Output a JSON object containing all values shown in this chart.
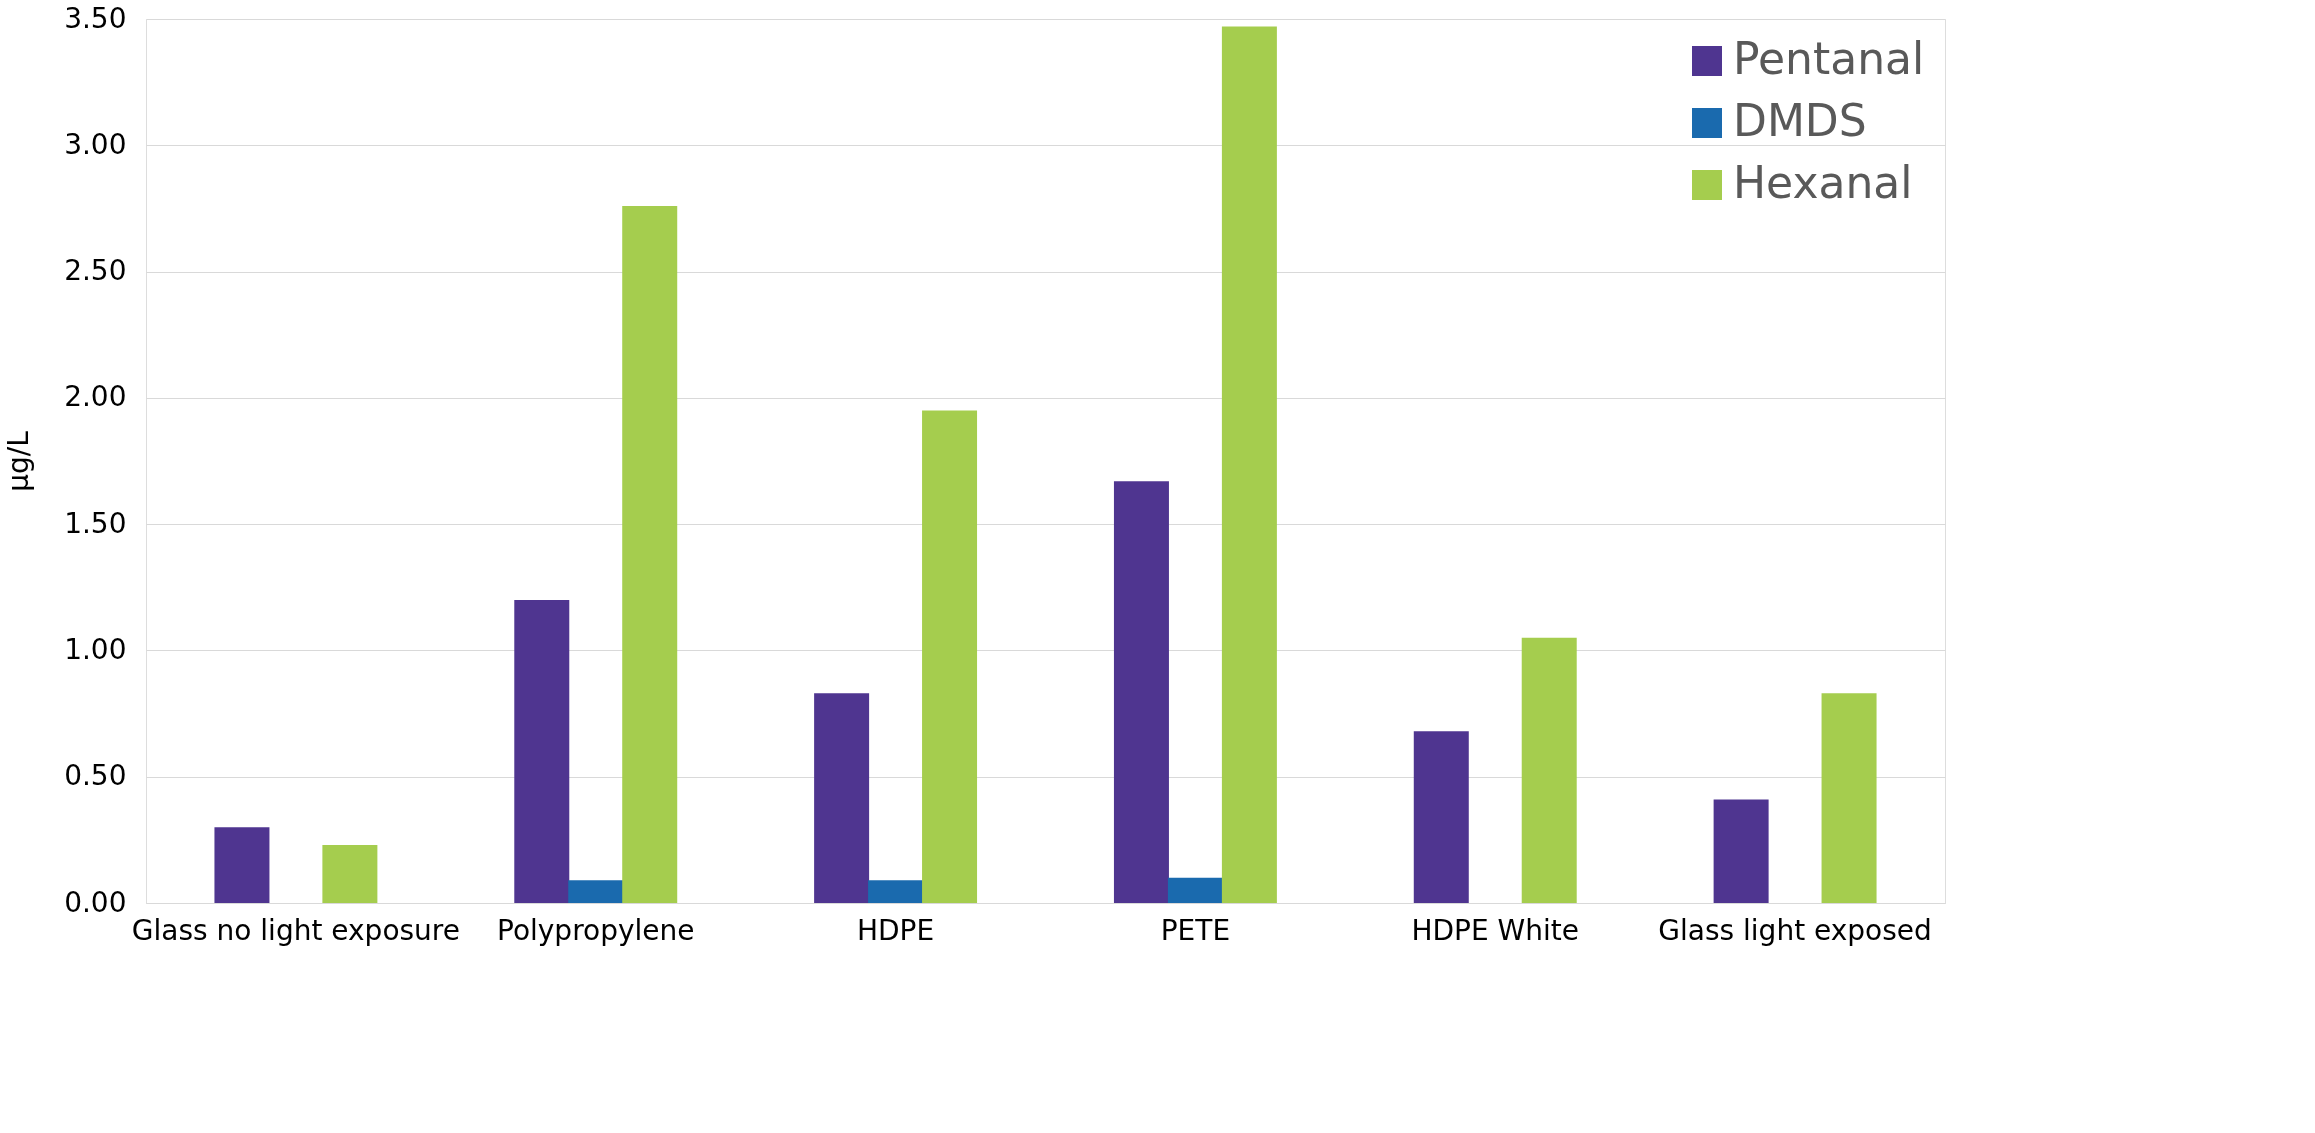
{
  "chart_data": {
    "type": "bar",
    "ylabel": "µg/L",
    "categories": [
      "Glass no light exposure",
      "Polypropylene",
      "HDPE",
      "PETE",
      "HDPE White",
      "Glass light exposed"
    ],
    "series": [
      {
        "name": "Pentanal",
        "color": "#4f3590",
        "values": [
          0.3,
          1.2,
          0.83,
          1.67,
          0.68,
          0.41
        ]
      },
      {
        "name": "DMDS",
        "color": "#1a6aae",
        "values": [
          null,
          0.09,
          0.09,
          0.1,
          null,
          null
        ]
      },
      {
        "name": "Hexanal",
        "color": "#a5cd4e",
        "values": [
          0.23,
          2.76,
          1.95,
          3.47,
          1.05,
          0.83
        ]
      }
    ],
    "ylim": [
      0,
      3.5
    ],
    "yticks": [
      {
        "value": 0,
        "label": "0.00"
      },
      {
        "value": 0.5,
        "label": "0.50"
      },
      {
        "value": 1,
        "label": "1.00"
      },
      {
        "value": 1.5,
        "label": "1.50"
      },
      {
        "value": 2,
        "label": "2.00"
      },
      {
        "value": 2.5,
        "label": "2.50"
      },
      {
        "value": 3,
        "label": "3.00"
      },
      {
        "value": 3.5,
        "label": "3.50"
      }
    ],
    "grid": "y",
    "legend": "top right"
  }
}
